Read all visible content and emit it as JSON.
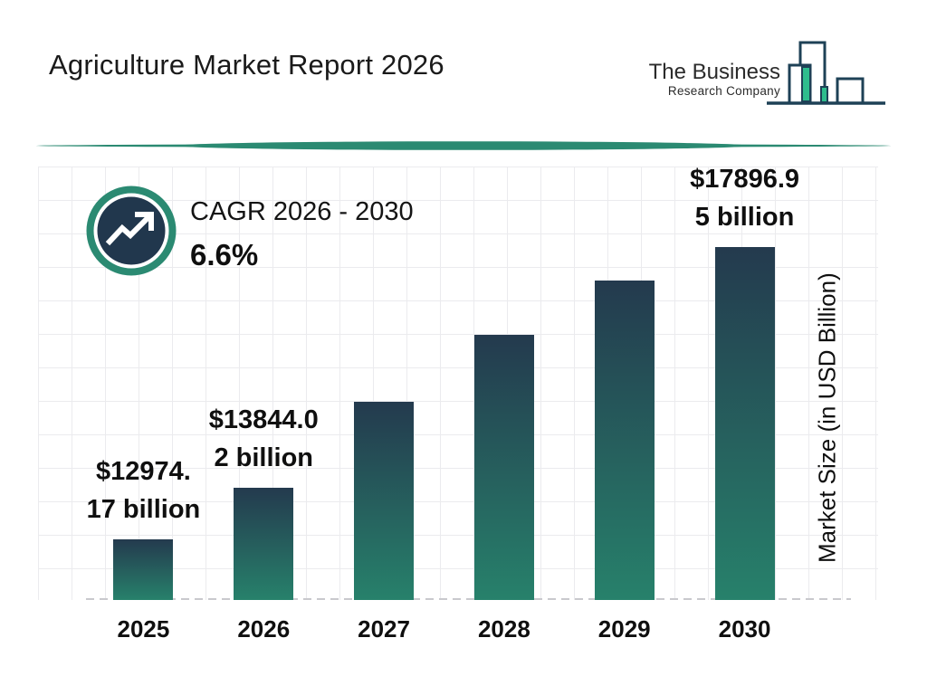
{
  "page": {
    "title": "Agriculture Market Report 2026"
  },
  "logo": {
    "line1": "The Business",
    "line2": "Research Company"
  },
  "cagr": {
    "label": "CAGR 2026 - 2030",
    "value": "6.6%"
  },
  "chart_data": {
    "type": "bar",
    "title": "Agriculture Market Report 2026",
    "categories": [
      "2025",
      "2026",
      "2027",
      "2028",
      "2029",
      "2030"
    ],
    "values": [
      12974.17,
      13844.02,
      15290,
      16418,
      17333,
      17896.95
    ],
    "values_estimated_from_pixels": [
      false,
      false,
      true,
      true,
      true,
      false
    ],
    "unit": "USD Billion",
    "ylabel": "Market Size (in USD Billion)",
    "ylim": [
      11950,
      19255
    ],
    "grid": true,
    "legend": false,
    "cagr_2026_2030_pct": 6.6,
    "bar_labels": [
      [
        "$12974.",
        "17 billion"
      ],
      [
        "$13844.0",
        "2 billion"
      ],
      null,
      null,
      null,
      [
        "$17896.9",
        "5 billion"
      ]
    ],
    "bar_label_full_values": [
      "$12974.17 billion",
      "$13844.02 billion",
      null,
      null,
      null,
      "$17896.95 billion"
    ]
  },
  "colors": {
    "accent_teal": "#2b8a72",
    "navy": "#21374d",
    "bar_top": "#243a4e",
    "bar_bottom": "#27816b",
    "logo_green": "#2ebd8d",
    "logo_outline": "#1e4156",
    "grid_line": "#ebebee",
    "dash_line": "#c9c9cd",
    "text": "#111111"
  }
}
